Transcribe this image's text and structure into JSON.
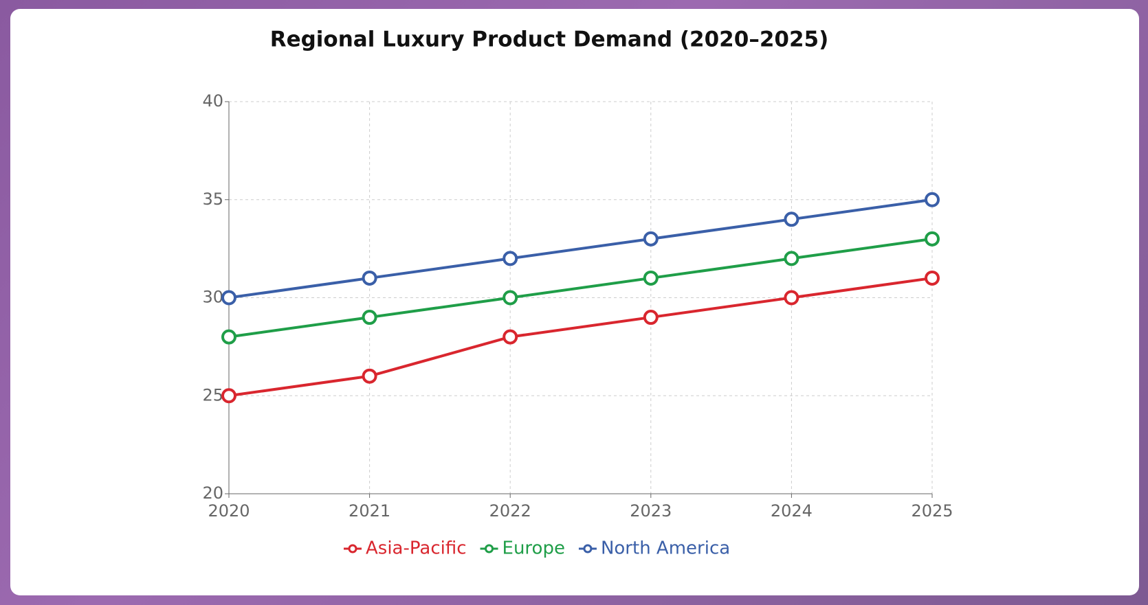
{
  "chart_data": {
    "type": "line",
    "title": "Regional Luxury Product Demand (2020–2025)",
    "x": [
      2020,
      2021,
      2022,
      2023,
      2024,
      2025
    ],
    "xlim": [
      2020,
      2025
    ],
    "xticks": [
      2020,
      2021,
      2022,
      2023,
      2024,
      2025
    ],
    "ylim": [
      20,
      40
    ],
    "yticks": [
      20,
      25,
      30,
      35,
      40
    ],
    "grid": true,
    "legend": "bottom",
    "series": [
      {
        "name": "Asia-Pacific",
        "color": "#d9262e",
        "values": [
          25,
          26,
          28,
          29,
          30,
          31
        ]
      },
      {
        "name": "Europe",
        "color": "#1f9e48",
        "values": [
          28,
          29,
          30,
          31,
          32,
          33
        ]
      },
      {
        "name": "North America",
        "color": "#3a5fa8",
        "values": [
          30,
          31,
          32,
          33,
          34,
          35
        ]
      }
    ]
  }
}
